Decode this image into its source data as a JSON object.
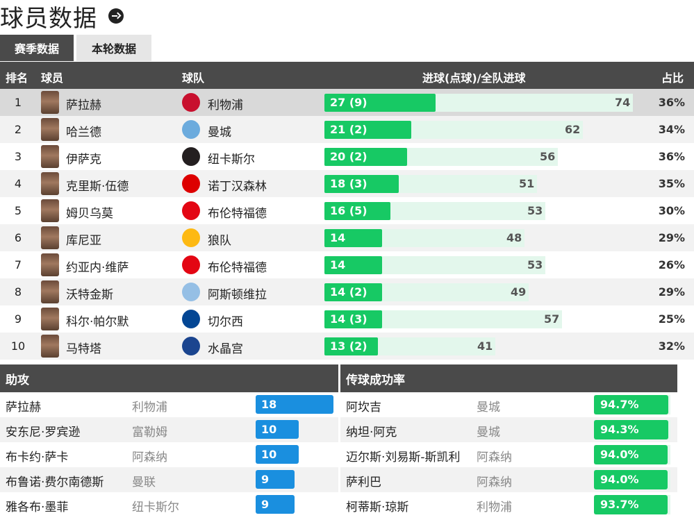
{
  "page": {
    "title": "球员数据"
  },
  "tabs": [
    {
      "label": "赛季数据",
      "active": true
    },
    {
      "label": "本轮数据",
      "active": false
    }
  ],
  "table": {
    "headers": {
      "rank": "排名",
      "player": "球员",
      "team": "球队",
      "goals": "进球(点球)/全队进球",
      "ratio": "占比"
    },
    "rows": [
      {
        "rank": "1",
        "player": "萨拉赫",
        "team": "利物浦",
        "goals_label": "27 (9)",
        "goals": 27,
        "team_goals": 74,
        "team_goals_label": "74",
        "ratio": "36%",
        "crest_color": "#c8102e"
      },
      {
        "rank": "2",
        "player": "哈兰德",
        "team": "曼城",
        "goals_label": "21 (2)",
        "goals": 21,
        "team_goals": 62,
        "team_goals_label": "62",
        "ratio": "34%",
        "crest_color": "#6cabdd"
      },
      {
        "rank": "3",
        "player": "伊萨克",
        "team": "纽卡斯尔",
        "goals_label": "20 (2)",
        "goals": 20,
        "team_goals": 56,
        "team_goals_label": "56",
        "ratio": "36%",
        "crest_color": "#241f20"
      },
      {
        "rank": "4",
        "player": "克里斯·伍德",
        "team": "诺丁汉森林",
        "goals_label": "18 (3)",
        "goals": 18,
        "team_goals": 51,
        "team_goals_label": "51",
        "ratio": "35%",
        "crest_color": "#dd0000"
      },
      {
        "rank": "5",
        "player": "姆贝乌莫",
        "team": "布伦特福德",
        "goals_label": "16 (5)",
        "goals": 16,
        "team_goals": 53,
        "team_goals_label": "53",
        "ratio": "30%",
        "crest_color": "#e30613"
      },
      {
        "rank": "6",
        "player": "库尼亚",
        "team": "狼队",
        "goals_label": "14",
        "goals": 14,
        "team_goals": 48,
        "team_goals_label": "48",
        "ratio": "29%",
        "crest_color": "#fdb913"
      },
      {
        "rank": "7",
        "player": "约亚内·维萨",
        "team": "布伦特福德",
        "goals_label": "14",
        "goals": 14,
        "team_goals": 53,
        "team_goals_label": "53",
        "ratio": "26%",
        "crest_color": "#e30613"
      },
      {
        "rank": "8",
        "player": "沃特金斯",
        "team": "阿斯顿维拉",
        "goals_label": "14 (2)",
        "goals": 14,
        "team_goals": 49,
        "team_goals_label": "49",
        "ratio": "29%",
        "crest_color": "#95bfe5"
      },
      {
        "rank": "9",
        "player": "科尔·帕尔默",
        "team": "切尔西",
        "goals_label": "14 (3)",
        "goals": 14,
        "team_goals": 57,
        "team_goals_label": "57",
        "ratio": "25%",
        "crest_color": "#034694"
      },
      {
        "rank": "10",
        "player": "马特塔",
        "team": "水晶宫",
        "goals_label": "13 (2)",
        "goals": 13,
        "team_goals": 41,
        "team_goals_label": "41",
        "ratio": "32%",
        "crest_color": "#1b458f"
      }
    ]
  },
  "assists": {
    "title": "助攻",
    "max": 18,
    "rows": [
      {
        "player": "萨拉赫",
        "team": "利物浦",
        "value": 18,
        "label": "18"
      },
      {
        "player": "安东尼·罗宾逊",
        "team": "富勒姆",
        "value": 10,
        "label": "10"
      },
      {
        "player": "布卡约·萨卡",
        "team": "阿森纳",
        "value": 10,
        "label": "10"
      },
      {
        "player": "布鲁诺·费尔南德斯",
        "team": "曼联",
        "value": 9,
        "label": "9"
      },
      {
        "player": "雅各布·墨菲",
        "team": "纽卡斯尔",
        "value": 9,
        "label": "9"
      }
    ]
  },
  "passing": {
    "title": "传球成功率",
    "rows": [
      {
        "player": "阿坎吉",
        "team": "曼城",
        "value": 94.7,
        "label": "94.7%"
      },
      {
        "player": "纳坦·阿克",
        "team": "曼城",
        "value": 94.3,
        "label": "94.3%"
      },
      {
        "player": "迈尔斯·刘易斯-斯凯利",
        "team": "阿森纳",
        "value": 94.0,
        "label": "94.0%"
      },
      {
        "player": "萨利巴",
        "team": "阿森纳",
        "value": 94.0,
        "label": "94.0%"
      },
      {
        "player": "柯蒂斯·琼斯",
        "team": "利物浦",
        "value": 93.7,
        "label": "93.7%"
      }
    ]
  }
}
